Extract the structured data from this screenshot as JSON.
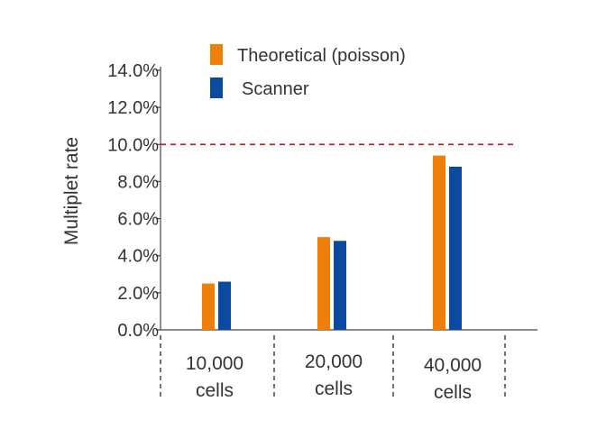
{
  "chart_data": {
    "type": "bar",
    "title": "",
    "xlabel": "",
    "ylabel": "Multiplet rate",
    "ylim": [
      0,
      14
    ],
    "yticks": [
      "0.0%",
      "2.0%",
      "4.0%",
      "6.0%",
      "8.0%",
      "10.0%",
      "12.0%",
      "14.0%"
    ],
    "categories": [
      {
        "line1": "10,000",
        "line2": "cells"
      },
      {
        "line1": "20,000",
        "line2": "cells"
      },
      {
        "line1": "40,000",
        "line2": "cells"
      }
    ],
    "series": [
      {
        "name": "Theoretical (poisson)",
        "color": "#f07f09",
        "values": [
          2.5,
          5.0,
          9.4
        ]
      },
      {
        "name": "Scanner",
        "color": "#0a4a9f",
        "values": [
          2.6,
          4.8,
          8.8
        ]
      }
    ],
    "reference_line": {
      "value": 10,
      "color": "#c0202a",
      "style": "dashed"
    },
    "grid": false,
    "legend_position": "top"
  }
}
